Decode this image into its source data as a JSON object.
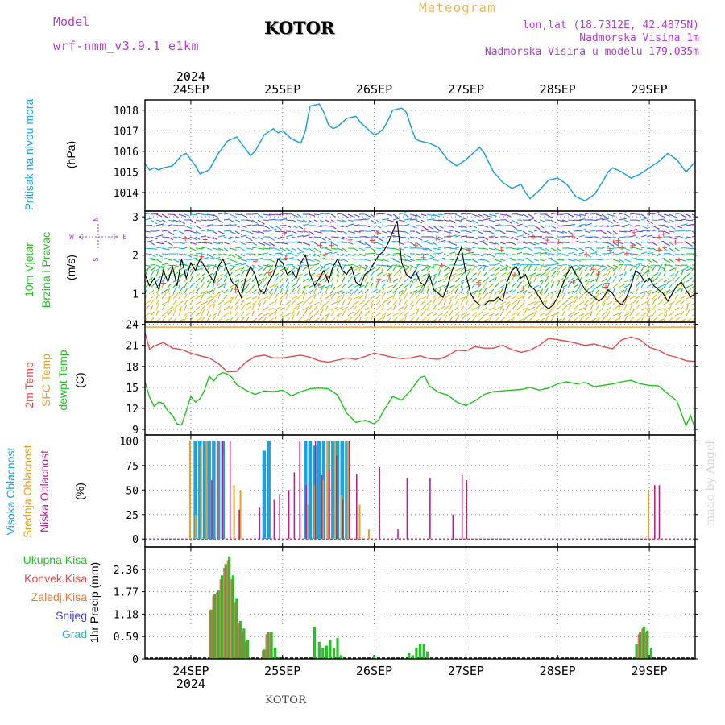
{
  "header": {
    "model_label": "Model",
    "model_name": "wrf-nmm_v3.9.1 e1km",
    "station": "KOTOR",
    "product": "Meteogram",
    "lonlat": "lon,lat (18.7312E, 42.4875N)",
    "elevation": "Nadmorska Visina 1m",
    "model_elevation": "Nadmorska Visina u modelu 179.035m",
    "footer_station": "KOTOR",
    "credit": "made by Angel"
  },
  "colors": {
    "pressure": "#1fa0e0",
    "temp2m": "#e84a4a",
    "sfc_temp": "#e8a020",
    "dewpoint": "#22c422",
    "high_cloud": "#1fa0e0",
    "mid_cloud": "#e8a020",
    "low_cloud": "#c0208a",
    "total_precip": "#22c422",
    "conv_precip": "#e84a4a",
    "frozen_precip": "#f07a30",
    "snow": "#4040e0",
    "hail": "#20c0c0",
    "header_purple": "#b040d0",
    "header_orange": "#e8b860"
  },
  "chart_data": [
    {
      "type": "line",
      "panel": "pressure",
      "ylabel": [
        "Pritisak na nivou mora",
        "(hPa)"
      ],
      "unit": "(hPa)",
      "x_top_year": "2024",
      "x_bottom_year": "2024",
      "xticks": [
        "24SEP",
        "25SEP",
        "26SEP",
        "27SEP",
        "28SEP",
        "29SEP"
      ],
      "xlim": [
        -0.5,
        5.5
      ],
      "ylim": [
        1013.1,
        1018.5
      ],
      "yticks": [
        1014,
        1015,
        1016,
        1017,
        1018
      ],
      "grid": true,
      "x": [
        -0.5,
        -0.45,
        -0.4,
        -0.35,
        -0.3,
        -0.2,
        -0.1,
        -0.05,
        0.0,
        0.05,
        0.1,
        0.2,
        0.3,
        0.4,
        0.5,
        0.6,
        0.65,
        0.7,
        0.8,
        0.9,
        0.95,
        1.0,
        1.1,
        1.15,
        1.2,
        1.25,
        1.3,
        1.4,
        1.45,
        1.5,
        1.55,
        1.6,
        1.7,
        1.8,
        1.85,
        1.9,
        2.0,
        2.05,
        2.1,
        2.15,
        2.2,
        2.3,
        2.35,
        2.4,
        2.45,
        2.5,
        2.6,
        2.7,
        2.8,
        2.9,
        3.0,
        3.1,
        3.15,
        3.2,
        3.3,
        3.4,
        3.5,
        3.6,
        3.65,
        3.7,
        3.75,
        3.8,
        3.9,
        4.0,
        4.1,
        4.2,
        4.3,
        4.4,
        4.5,
        4.55,
        4.6,
        4.7,
        4.8,
        4.9,
        5.0,
        5.1,
        5.2,
        5.3,
        5.4,
        5.5
      ],
      "values": [
        1015.4,
        1015.1,
        1015.2,
        1015.1,
        1015.2,
        1015.3,
        1015.8,
        1015.9,
        1015.6,
        1015.3,
        1014.9,
        1015.1,
        1015.9,
        1016.5,
        1016.7,
        1016.1,
        1015.8,
        1016.0,
        1016.8,
        1017.1,
        1016.9,
        1017.0,
        1016.6,
        1016.5,
        1016.4,
        1017.0,
        1018.2,
        1018.3,
        1017.9,
        1017.3,
        1017.1,
        1017.2,
        1017.6,
        1017.7,
        1017.4,
        1017.2,
        1016.8,
        1016.9,
        1017.1,
        1017.5,
        1018.0,
        1018.1,
        1017.9,
        1017.2,
        1016.6,
        1016.5,
        1016.4,
        1016.2,
        1015.6,
        1015.3,
        1015.6,
        1016.0,
        1016.2,
        1015.9,
        1015.0,
        1014.5,
        1014.2,
        1014.4,
        1014.0,
        1013.7,
        1013.9,
        1014.1,
        1014.6,
        1014.7,
        1014.4,
        1013.8,
        1013.6,
        1013.9,
        1014.6,
        1015.0,
        1015.2,
        1015.0,
        1014.7,
        1014.9,
        1015.2,
        1015.5,
        1015.9,
        1015.6,
        1015.0,
        1015.5
      ]
    },
    {
      "type": "line",
      "panel": "wind",
      "ylabel": [
        "10m Vjetar",
        "Brzina i Pravac",
        "(m/s)"
      ],
      "unit": "(m/s)",
      "compass": {
        "n": "N",
        "e": "E",
        "w": "W",
        "s": "S"
      },
      "xlim": [
        -0.5,
        5.5
      ],
      "ylim": [
        0.25,
        3.15
      ],
      "yticks": [
        1,
        2,
        3
      ],
      "grid": true,
      "x": [
        -0.5,
        -0.45,
        -0.4,
        -0.35,
        -0.3,
        -0.25,
        -0.2,
        -0.15,
        -0.1,
        -0.05,
        0.0,
        0.05,
        0.1,
        0.15,
        0.2,
        0.25,
        0.3,
        0.35,
        0.4,
        0.45,
        0.5,
        0.55,
        0.6,
        0.65,
        0.7,
        0.75,
        0.8,
        0.85,
        0.9,
        0.95,
        1.0,
        1.05,
        1.1,
        1.15,
        1.2,
        1.25,
        1.3,
        1.35,
        1.4,
        1.45,
        1.5,
        1.55,
        1.6,
        1.65,
        1.7,
        1.75,
        1.8,
        1.85,
        1.9,
        1.95,
        2.0,
        2.05,
        2.1,
        2.15,
        2.2,
        2.25,
        2.3,
        2.35,
        2.4,
        2.45,
        2.5,
        2.55,
        2.6,
        2.65,
        2.7,
        2.75,
        2.8,
        2.85,
        2.9,
        2.95,
        3.0,
        3.05,
        3.1,
        3.15,
        3.2,
        3.25,
        3.3,
        3.35,
        3.4,
        3.45,
        3.5,
        3.55,
        3.6,
        3.65,
        3.7,
        3.75,
        3.8,
        3.85,
        3.9,
        3.95,
        4.0,
        4.05,
        4.1,
        4.15,
        4.2,
        4.25,
        4.3,
        4.35,
        4.4,
        4.45,
        4.5,
        4.55,
        4.6,
        4.65,
        4.7,
        4.75,
        4.8,
        4.85,
        4.9,
        4.95,
        5.0,
        5.05,
        5.1,
        5.15,
        5.2,
        5.25,
        5.3,
        5.35,
        5.4,
        5.45,
        5.5
      ],
      "values": [
        1.5,
        1.2,
        1.4,
        1.1,
        1.6,
        1.3,
        1.7,
        1.2,
        1.9,
        1.4,
        1.8,
        1.6,
        1.9,
        1.7,
        1.5,
        1.3,
        1.7,
        1.9,
        1.6,
        1.3,
        1.2,
        0.9,
        1.4,
        1.7,
        1.5,
        1.1,
        1.0,
        1.3,
        1.5,
        1.9,
        1.8,
        1.5,
        1.6,
        1.4,
        1.8,
        2.0,
        1.5,
        1.2,
        1.4,
        1.6,
        1.3,
        1.7,
        1.9,
        1.6,
        1.5,
        1.7,
        1.3,
        1.2,
        1.5,
        1.6,
        1.8,
        2.0,
        2.1,
        2.3,
        2.6,
        2.9,
        1.8,
        1.5,
        1.4,
        1.6,
        1.3,
        1.2,
        1.5,
        1.1,
        1.0,
        0.9,
        1.2,
        1.6,
        1.9,
        2.2,
        1.5,
        1.0,
        0.8,
        0.7,
        0.7,
        0.8,
        0.8,
        0.9,
        0.8,
        1.3,
        1.6,
        1.7,
        1.4,
        1.5,
        1.2,
        1.1,
        0.9,
        0.7,
        0.6,
        0.7,
        0.9,
        1.2,
        1.5,
        1.7,
        1.5,
        1.3,
        1.1,
        1.0,
        0.9,
        0.8,
        0.9,
        1.1,
        1.0,
        0.8,
        0.7,
        0.9,
        1.2,
        1.6,
        1.5,
        1.3,
        1.4,
        1.2,
        1.1,
        1.0,
        0.8,
        1.0,
        1.2,
        1.3,
        1.1,
        0.9,
        1.0
      ]
    },
    {
      "type": "line",
      "panel": "temperature",
      "ylabel": [
        "2m Temp",
        "SFC Temp",
        "dewpt Temp",
        "(C)"
      ],
      "unit": "(C)",
      "xlim": [
        -0.5,
        5.5
      ],
      "ylim": [
        8.2,
        24.3
      ],
      "yticks": [
        9,
        12,
        15,
        18,
        21,
        24
      ],
      "grid": true,
      "series": [
        {
          "name": "2m Temp",
          "x": [
            -0.5,
            -0.45,
            -0.4,
            -0.3,
            -0.2,
            -0.1,
            0.0,
            0.1,
            0.2,
            0.3,
            0.4,
            0.5,
            0.6,
            0.7,
            0.8,
            0.9,
            1.0,
            1.1,
            1.2,
            1.3,
            1.4,
            1.5,
            1.6,
            1.7,
            1.8,
            1.9,
            2.0,
            2.1,
            2.2,
            2.3,
            2.4,
            2.5,
            2.6,
            2.7,
            2.8,
            2.9,
            3.0,
            3.1,
            3.2,
            3.3,
            3.4,
            3.5,
            3.6,
            3.7,
            3.8,
            3.9,
            4.0,
            4.1,
            4.2,
            4.3,
            4.4,
            4.5,
            4.6,
            4.7,
            4.8,
            4.9,
            5.0,
            5.1,
            5.2,
            5.3,
            5.4,
            5.5
          ],
          "values": [
            22.8,
            20.4,
            20.9,
            21.4,
            20.6,
            20.4,
            19.9,
            19.5,
            19.2,
            18.4,
            17.2,
            17.3,
            18.6,
            19.4,
            19.6,
            19.2,
            19.2,
            19.4,
            19.6,
            19.3,
            18.8,
            18.6,
            18.9,
            19.2,
            19.0,
            19.4,
            19.9,
            19.6,
            19.3,
            19.1,
            19.2,
            19.5,
            19.1,
            19.0,
            19.5,
            20.3,
            20.2,
            20.8,
            20.6,
            20.6,
            21.0,
            20.4,
            20.0,
            20.3,
            21.0,
            22.0,
            21.8,
            21.6,
            21.3,
            21.0,
            21.2,
            20.8,
            20.5,
            21.8,
            22.2,
            21.8,
            20.7,
            20.3,
            19.6,
            19.3,
            18.8,
            18.7
          ]
        },
        {
          "name": "SFC Temp",
          "x": [
            -0.5,
            5.5
          ],
          "values": [
            23.6,
            23.6
          ]
        },
        {
          "name": "dewpt Temp",
          "x": [
            -0.5,
            -0.45,
            -0.4,
            -0.35,
            -0.3,
            -0.25,
            -0.2,
            -0.15,
            -0.1,
            -0.05,
            0.0,
            0.05,
            0.1,
            0.15,
            0.2,
            0.25,
            0.3,
            0.35,
            0.4,
            0.45,
            0.5,
            0.6,
            0.7,
            0.8,
            0.9,
            1.0,
            1.1,
            1.2,
            1.3,
            1.4,
            1.5,
            1.6,
            1.7,
            1.8,
            1.9,
            2.0,
            2.05,
            2.1,
            2.2,
            2.3,
            2.4,
            2.5,
            2.55,
            2.6,
            2.7,
            2.8,
            2.9,
            3.0,
            3.1,
            3.2,
            3.3,
            3.4,
            3.5,
            3.6,
            3.7,
            3.8,
            3.9,
            4.0,
            4.1,
            4.2,
            4.3,
            4.4,
            4.5,
            4.6,
            4.7,
            4.8,
            4.9,
            5.0,
            5.1,
            5.2,
            5.3,
            5.4,
            5.45,
            5.5
          ],
          "values": [
            15.8,
            13.6,
            12.3,
            12.9,
            12.7,
            11.6,
            11.0,
            9.8,
            9.6,
            11.6,
            13.7,
            12.9,
            13.4,
            14.6,
            16.6,
            15.9,
            16.8,
            17.1,
            16.9,
            16.4,
            15.4,
            14.6,
            14.0,
            14.5,
            14.4,
            14.6,
            13.8,
            14.4,
            14.8,
            14.9,
            14.8,
            13.9,
            11.3,
            10.0,
            10.3,
            9.8,
            10.4,
            11.6,
            13.7,
            13.2,
            14.6,
            16.4,
            16.6,
            15.2,
            14.3,
            13.9,
            12.9,
            12.4,
            13.1,
            14.0,
            14.4,
            14.5,
            14.6,
            14.7,
            15.0,
            14.6,
            14.9,
            15.5,
            15.8,
            15.5,
            15.7,
            15.1,
            15.3,
            15.5,
            15.8,
            16.0,
            15.5,
            15.3,
            15.2,
            14.1,
            13.1,
            9.5,
            11.0,
            9.0
          ]
        }
      ]
    },
    {
      "type": "bar",
      "panel": "clouds",
      "ylabel": [
        "Visoka Oblacnost",
        "Srednja Oblacnost",
        "Niska Oblacnost",
        "(%)"
      ],
      "unit": "(%)",
      "xlim": [
        -0.5,
        5.5
      ],
      "ylim": [
        -8,
        106
      ],
      "yticks": [
        0,
        25,
        50,
        75,
        100
      ],
      "grid": true,
      "series": [
        {
          "name": "Visoka Oblacnost",
          "x": [
            0.05,
            0.1,
            0.15,
            0.2,
            0.25,
            0.3,
            0.35,
            0.8,
            0.85,
            1.25,
            1.3,
            1.35,
            1.4,
            1.45,
            1.5,
            1.55,
            1.6,
            1.65,
            1.7
          ],
          "values": [
            100,
            100,
            100,
            100,
            100,
            100,
            100,
            90,
            100,
            100,
            100,
            95,
            100,
            100,
            100,
            100,
            100,
            100,
            100
          ]
        },
        {
          "name": "Srednja Oblacnost",
          "x": [
            0.0,
            0.06,
            0.12,
            0.18,
            0.24,
            0.3,
            0.36,
            0.48,
            0.55,
            1.2,
            1.28,
            1.36,
            1.45,
            1.5,
            1.58,
            1.65,
            1.72,
            1.85,
            1.95,
            5.0
          ],
          "values": [
            100,
            25,
            95,
            100,
            60,
            100,
            85,
            55,
            50,
            25,
            35,
            55,
            60,
            100,
            100,
            45,
            100,
            35,
            10,
            50
          ]
        },
        {
          "name": "Niska Oblacnost",
          "x": [
            0.22,
            0.28,
            0.34,
            0.42,
            0.52,
            0.74,
            0.9,
            0.96,
            1.06,
            1.12,
            1.18,
            1.25,
            1.35,
            1.42,
            1.5,
            1.58,
            1.65,
            1.72,
            1.8,
            2.05,
            2.25,
            2.35,
            2.6,
            2.85,
            2.95,
            3.0,
            5.05,
            5.1
          ],
          "values": [
            60,
            100,
            100,
            100,
            30,
            32,
            40,
            46,
            50,
            68,
            100,
            55,
            100,
            65,
            70,
            85,
            40,
            100,
            66,
            73,
            10,
            62,
            62,
            25,
            65,
            60,
            55,
            55
          ]
        }
      ]
    },
    {
      "type": "bar",
      "panel": "precipitation",
      "ylabel": [
        "1hr Precip (mm)"
      ],
      "legend": [
        "Ukupna Kisa",
        "Konvek.Kisa",
        "Zaledj.Kisa",
        "Snijeg",
        "Grad"
      ],
      "xticks": [
        "24SEP",
        "25SEP",
        "26SEP",
        "27SEP",
        "28SEP",
        "29SEP"
      ],
      "x_bottom_year": "2024",
      "xlim": [
        -0.5,
        5.5
      ],
      "ylim": [
        0,
        2.95
      ],
      "yticks": [
        0,
        0.59,
        1.18,
        1.77,
        2.36
      ],
      "grid": true,
      "series": [
        {
          "name": "Ukupna Kisa",
          "x": [
            0.22,
            0.26,
            0.3,
            0.34,
            0.38,
            0.42,
            0.46,
            0.5,
            0.54,
            0.58,
            0.62,
            0.8,
            0.84,
            0.88,
            0.92,
            0.96,
            1.35,
            1.4,
            1.44,
            1.48,
            1.52,
            1.56,
            1.6,
            1.64,
            2.0,
            2.38,
            2.42,
            2.46,
            2.5,
            2.54,
            2.58,
            4.86,
            4.9,
            4.94,
            4.98,
            5.02,
            5.06
          ],
          "values": [
            1.3,
            1.7,
            1.8,
            2.2,
            2.5,
            2.7,
            2.2,
            1.6,
            1.0,
            0.8,
            0.5,
            0.25,
            0.7,
            0.72,
            0.3,
            0.05,
            0.85,
            0.45,
            0.3,
            0.35,
            0.5,
            0.3,
            0.55,
            0.1,
            0.1,
            0.15,
            0.1,
            0.3,
            0.4,
            0.4,
            0.2,
            0.4,
            0.7,
            0.85,
            0.75,
            0.3,
            0.0
          ]
        },
        {
          "name": "Konvek.Kisa",
          "x": [
            0.22,
            0.26,
            0.3,
            0.34,
            0.38,
            0.42,
            0.46,
            0.5,
            0.54,
            0.58,
            0.62,
            0.8,
            0.84,
            0.88,
            4.9,
            4.94,
            4.98
          ],
          "values": [
            1.28,
            1.65,
            1.75,
            2.1,
            2.4,
            2.6,
            2.1,
            1.5,
            0.95,
            0.75,
            0.45,
            0.22,
            0.65,
            0.7,
            0.65,
            0.8,
            0.7
          ]
        }
      ]
    }
  ]
}
